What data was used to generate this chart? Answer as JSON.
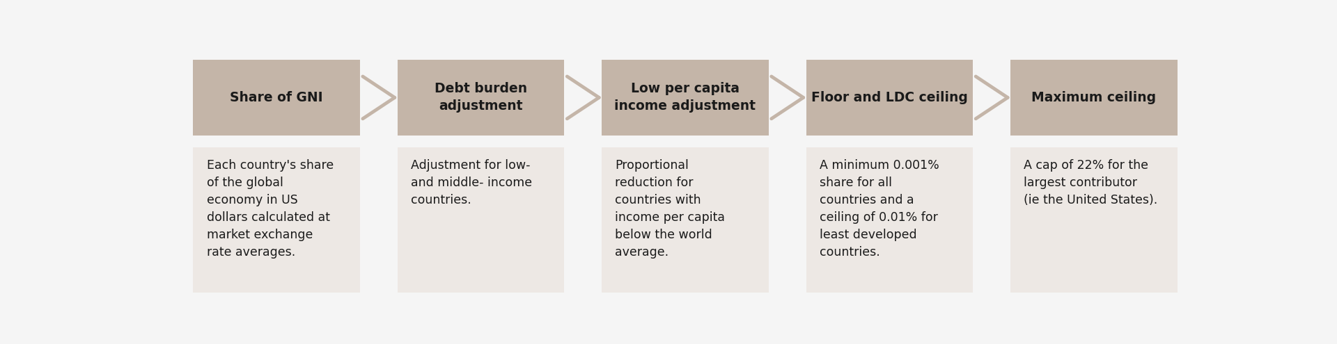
{
  "background_color": "#f5f5f5",
  "header_box_color": "#c4b5a8",
  "body_box_color": "#ede8e4",
  "arrow_color": "#c4b5a8",
  "text_color": "#1a1a1a",
  "header_text_color": "#1a1a1a",
  "steps": [
    {
      "header": "Share of GNI",
      "body": "Each country's share\nof the global\neconomy in US\ndollars calculated at\nmarket exchange\nrate averages."
    },
    {
      "header": "Debt burden\nadjustment",
      "body": "Adjustment for low-\nand middle- income\ncountries."
    },
    {
      "header": "Low per capita\nincome adjustment",
      "body": "Proportional\nreduction for\ncountries with\nincome per capita\nbelow the world\naverage."
    },
    {
      "header": "Floor and LDC ceiling",
      "body": "A minimum 0.001%\nshare for all\ncountries and a\nceiling of 0.01% for\nleast developed\ncountries."
    },
    {
      "header": "Maximum ceiling",
      "body": "A cap of 22% for the\nlargest contributor\n(ie the United States)."
    }
  ],
  "figsize": [
    19.2,
    4.95
  ],
  "dpi": 100,
  "header_fontsize": 13.5,
  "body_fontsize": 12.5
}
